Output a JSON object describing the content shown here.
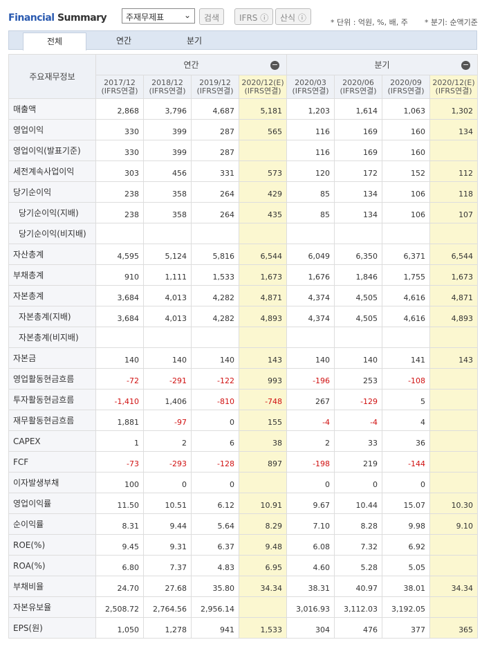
{
  "header": {
    "title_part1": "Financial",
    "title_part2": "Summary",
    "select": "주재무제표",
    "buttons": [
      "검색",
      "IFRS",
      "산식"
    ],
    "notes": [
      "* 단위 : 억원, %, 배, 주",
      "* 분기: 순액기준"
    ]
  },
  "tabs": [
    "전체",
    "연간",
    "분기"
  ],
  "table": {
    "corner": "주요재무정보",
    "groups": [
      "연간",
      "분기"
    ],
    "columns": [
      [
        "2017/12",
        "(IFRS연결)"
      ],
      [
        "2018/12",
        "(IFRS연결)"
      ],
      [
        "2019/12",
        "(IFRS연결)"
      ],
      [
        "2020/12(E)",
        "(IFRS연결)"
      ],
      [
        "2020/03",
        "(IFRS연결)"
      ],
      [
        "2020/06",
        "(IFRS연결)"
      ],
      [
        "2020/09",
        "(IFRS연결)"
      ],
      [
        "2020/12(E)",
        "(IFRS연결)"
      ]
    ],
    "rows": [
      {
        "label": "매출액",
        "values": [
          "2,868",
          "3,796",
          "4,687",
          "5,181",
          "1,203",
          "1,614",
          "1,063",
          "1,302"
        ]
      },
      {
        "label": "영업이익",
        "values": [
          "330",
          "399",
          "287",
          "565",
          "116",
          "169",
          "160",
          "134"
        ]
      },
      {
        "label": "영업이익(발표기준)",
        "values": [
          "330",
          "399",
          "287",
          null,
          "116",
          "169",
          "160",
          null
        ]
      },
      {
        "label": "세전계속사업이익",
        "values": [
          "303",
          "456",
          "331",
          "573",
          "120",
          "172",
          "152",
          "112"
        ]
      },
      {
        "label": "당기순이익",
        "values": [
          "238",
          "358",
          "264",
          "429",
          "85",
          "134",
          "106",
          "118"
        ]
      },
      {
        "label": "당기순이익(지배)",
        "values": [
          "238",
          "358",
          "264",
          "435",
          "85",
          "134",
          "106",
          "107"
        ]
      },
      {
        "label": "당기순이익(비지배)",
        "values": [
          null,
          null,
          null,
          null,
          null,
          null,
          null,
          null
        ]
      },
      {
        "label": "자산총계",
        "values": [
          "4,595",
          "5,124",
          "5,816",
          "6,544",
          "6,049",
          "6,350",
          "6,371",
          "6,544"
        ]
      },
      {
        "label": "부채총계",
        "values": [
          "910",
          "1,111",
          "1,533",
          "1,673",
          "1,676",
          "1,846",
          "1,755",
          "1,673"
        ]
      },
      {
        "label": "자본총계",
        "values": [
          "3,684",
          "4,013",
          "4,282",
          "4,871",
          "4,374",
          "4,505",
          "4,616",
          "4,871"
        ]
      },
      {
        "label": "자본총계(지배)",
        "values": [
          "3,684",
          "4,013",
          "4,282",
          "4,893",
          "4,374",
          "4,505",
          "4,616",
          "4,893"
        ]
      },
      {
        "label": "자본총계(비지배)",
        "values": [
          null,
          null,
          null,
          null,
          null,
          null,
          null,
          null
        ]
      },
      {
        "label": "자본금",
        "values": [
          "140",
          "140",
          "140",
          "143",
          "140",
          "140",
          "141",
          "143"
        ]
      },
      {
        "label": "영업활동현금흐름",
        "values": [
          "-72",
          "-291",
          "-122",
          "993",
          "-196",
          "253",
          "-108",
          null
        ]
      },
      {
        "label": "투자활동현금흐름",
        "values": [
          "-1,410",
          "1,406",
          "-810",
          "-748",
          "267",
          "-129",
          "5",
          null
        ]
      },
      {
        "label": "재무활동현금흐름",
        "values": [
          "1,881",
          "-97",
          "0",
          "155",
          "-4",
          "-4",
          "4",
          null
        ]
      },
      {
        "label": "CAPEX",
        "values": [
          "1",
          "2",
          "6",
          "38",
          "2",
          "33",
          "36",
          null
        ]
      },
      {
        "label": "FCF",
        "values": [
          "-73",
          "-293",
          "-128",
          "897",
          "-198",
          "219",
          "-144",
          null
        ]
      },
      {
        "label": "이자발생부채",
        "values": [
          "100",
          "0",
          "0",
          null,
          "0",
          "0",
          "0",
          null
        ]
      },
      {
        "label": "영업이익률",
        "values": [
          "11.50",
          "10.51",
          "6.12",
          "10.91",
          "9.67",
          "10.44",
          "15.07",
          "10.30"
        ]
      },
      {
        "label": "순이익률",
        "values": [
          "8.31",
          "9.44",
          "5.64",
          "8.29",
          "7.10",
          "8.28",
          "9.98",
          "9.10"
        ]
      },
      {
        "label": "ROE(%)",
        "values": [
          "9.45",
          "9.31",
          "6.37",
          "9.48",
          "6.08",
          "7.32",
          "6.92",
          null
        ]
      },
      {
        "label": "ROA(%)",
        "values": [
          "6.80",
          "7.37",
          "4.83",
          "6.95",
          "4.60",
          "5.28",
          "5.05",
          null
        ]
      },
      {
        "label": "부채비율",
        "values": [
          "24.70",
          "27.68",
          "35.80",
          "34.34",
          "38.31",
          "40.97",
          "38.01",
          "34.34"
        ]
      },
      {
        "label": "자본유보율",
        "values": [
          "2,508.72",
          "2,764.56",
          "2,956.14",
          null,
          "3,016.93",
          "3,112.03",
          "3,192.05",
          null
        ]
      },
      {
        "label": "EPS(원)",
        "values": [
          "1,050",
          "1,278",
          "941",
          "1,533",
          "304",
          "476",
          "377",
          "365"
        ]
      }
    ]
  }
}
